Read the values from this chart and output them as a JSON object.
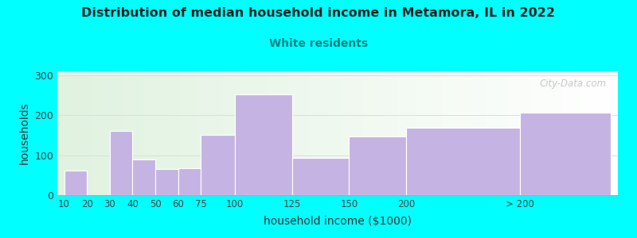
{
  "title": "Distribution of median household income in Metamora, IL in 2022",
  "subtitle": "White residents",
  "xlabel": "household income ($1000)",
  "ylabel": "households",
  "background_color": "#00ffff",
  "bar_color": "#c5b4e3",
  "subtitle_color": "#008080",
  "title_color": "#222222",
  "categories": [
    "10",
    "20",
    "30",
    "40",
    "50",
    "60",
    "75",
    "100",
    "125",
    "150",
    "200",
    "> 200"
  ],
  "values": [
    62,
    0,
    160,
    90,
    65,
    68,
    152,
    252,
    93,
    148,
    168,
    207
  ],
  "ylim": [
    0,
    310
  ],
  "yticks": [
    0,
    100,
    200,
    300
  ],
  "left_edges": [
    0,
    10,
    20,
    30,
    40,
    50,
    60,
    75,
    100,
    125,
    150,
    200
  ],
  "right_edges": [
    10,
    20,
    30,
    40,
    50,
    60,
    75,
    100,
    125,
    150,
    200,
    240
  ],
  "xmin": -3,
  "xmax": 243,
  "watermark": "City-Data.com"
}
